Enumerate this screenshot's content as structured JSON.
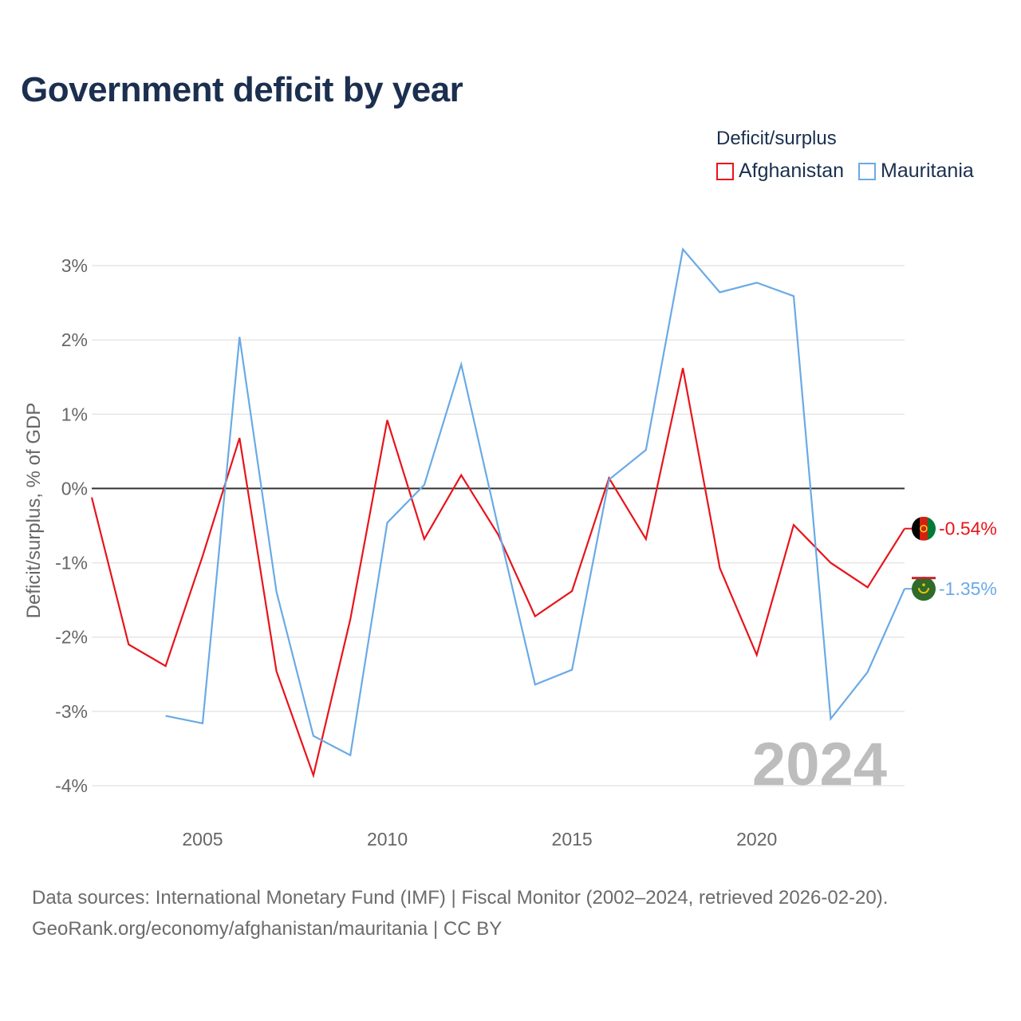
{
  "title": "Government deficit by year",
  "legend": {
    "title": "Deficit/surplus",
    "items": [
      {
        "label": "Afghanistan",
        "color": "#e8141b"
      },
      {
        "label": "Mauritania",
        "color": "#6aaae6"
      }
    ]
  },
  "footer": {
    "line1": "Data sources: International Monetary Fund (IMF) | Fiscal Monitor (2002–2024, retrieved 2026-02-20).",
    "line2": "GeoRank.org/economy/afghanistan/mauritania | CC BY"
  },
  "chart_data": {
    "type": "line",
    "title": "Government deficit by year",
    "xlabel": "",
    "ylabel": "Deficit/surplus, % of GDP",
    "xlim": [
      2002,
      2024
    ],
    "ylim": [
      -4,
      3
    ],
    "y_ticks": [
      3,
      2,
      1,
      0,
      -1,
      -2,
      -3,
      -4
    ],
    "y_tick_labels": [
      "3%",
      "2%",
      "1%",
      "0%",
      "-1%",
      "-2%",
      "-3%",
      "-4%"
    ],
    "x_ticks": [
      2005,
      2010,
      2015,
      2020
    ],
    "x_tick_labels": [
      "2005",
      "2010",
      "2015",
      "2020"
    ],
    "watermark": "2024",
    "series": [
      {
        "name": "Afghanistan",
        "color": "#e8141b",
        "end_label": "-0.54%",
        "x": [
          2002,
          2003,
          2004,
          2005,
          2006,
          2007,
          2008,
          2009,
          2010,
          2011,
          2012,
          2013,
          2014,
          2015,
          2016,
          2017,
          2018,
          2019,
          2020,
          2021,
          2022,
          2023,
          2024
        ],
        "values": [
          -0.12,
          -2.1,
          -2.39,
          -0.91,
          0.68,
          -2.46,
          -3.86,
          -1.76,
          0.92,
          -0.68,
          0.18,
          -0.62,
          -1.72,
          -1.38,
          0.14,
          -0.68,
          1.62,
          -1.07,
          -2.24,
          -0.49,
          -1.0,
          -1.33,
          -0.54
        ]
      },
      {
        "name": "Mauritania",
        "color": "#6aaae6",
        "end_label": "-1.35%",
        "x": [
          2004,
          2005,
          2006,
          2007,
          2008,
          2009,
          2010,
          2011,
          2012,
          2013,
          2014,
          2015,
          2016,
          2017,
          2018,
          2019,
          2020,
          2021,
          2022,
          2023,
          2024
        ],
        "values": [
          -3.06,
          -3.16,
          2.04,
          -1.39,
          -3.33,
          -3.59,
          -0.46,
          0.05,
          1.67,
          -0.52,
          -2.64,
          -2.44,
          0.12,
          0.52,
          3.22,
          2.64,
          2.77,
          2.59,
          -3.1,
          -2.47,
          -1.35
        ]
      }
    ]
  }
}
